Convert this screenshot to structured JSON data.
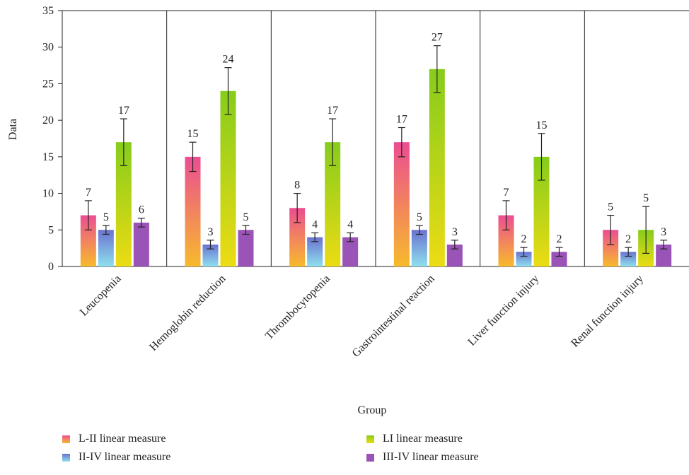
{
  "chart_data": {
    "type": "bar",
    "xlabel": "Group",
    "ylabel": "Data",
    "ylim": [
      0,
      35
    ],
    "yticks": [
      0,
      5,
      10,
      15,
      20,
      25,
      30,
      35
    ],
    "categories": [
      "Leucopenia",
      "Hemoglobin reduction",
      "Thrombocytopenia",
      "Gastrointestinal reaction",
      "Liver function injury",
      "Renal function injury"
    ],
    "series": [
      {
        "name": "L-II linear measure",
        "values": [
          7,
          15,
          8,
          17,
          7,
          5
        ],
        "error": [
          2,
          2,
          2,
          2,
          2,
          2
        ],
        "color_top": "#ec4d92",
        "color_bottom": "#f7ba2c"
      },
      {
        "name": "II-IV linear measure",
        "values": [
          5,
          3,
          4,
          5,
          2,
          2
        ],
        "error": [
          0.6,
          0.6,
          0.6,
          0.6,
          0.6,
          0.6
        ],
        "color_top": "#6a72cf",
        "color_bottom": "#8ee0ee"
      },
      {
        "name": "LI linear measure",
        "values": [
          17,
          24,
          17,
          27,
          15,
          5
        ],
        "error": [
          3.2,
          3.2,
          3.2,
          3.2,
          3.2,
          3.2
        ],
        "color_top": "#86cc1c",
        "color_bottom": "#ecdc14"
      },
      {
        "name": "III-IV linear measure",
        "values": [
          6,
          5,
          4,
          3,
          2,
          3
        ],
        "error": [
          0.6,
          0.6,
          0.6,
          0.6,
          0.6,
          0.6
        ],
        "color_top": "#9a53b6",
        "color_bottom": "#9a53b6"
      }
    ],
    "data_labels": [
      [
        "7",
        "15",
        "8",
        "17",
        "7",
        "5"
      ],
      [
        "5",
        "3",
        "4",
        "5",
        "2",
        "2"
      ],
      [
        "17",
        "24",
        "17",
        "27",
        "15",
        "5"
      ],
      [
        "6",
        "5",
        "4",
        "3",
        "2",
        "3"
      ]
    ],
    "legend_position": "bottom",
    "grid": false
  }
}
